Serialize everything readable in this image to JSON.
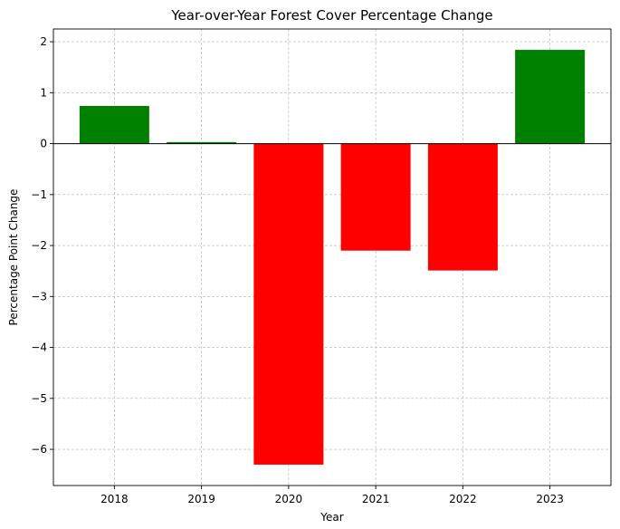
{
  "chart_data": {
    "type": "bar",
    "title": "Year-over-Year Forest Cover Percentage Change",
    "xlabel": "Year",
    "ylabel": "Percentage Point Change",
    "categories": [
      "2018",
      "2019",
      "2020",
      "2021",
      "2022",
      "2023"
    ],
    "values": [
      0.74,
      0.03,
      -6.3,
      -2.1,
      -2.49,
      1.84
    ],
    "colors": {
      "positive": "#008000",
      "negative": "#ff0000"
    },
    "ylim": [
      -6.71,
      2.25
    ],
    "yticks": [
      2,
      1,
      0,
      -1,
      -2,
      -3,
      -4,
      -5,
      -6
    ],
    "ytick_labels": [
      "2",
      "1",
      "0",
      "−1",
      "−2",
      "−3",
      "−4",
      "−5",
      "−6"
    ],
    "grid": true,
    "zero_line": true
  }
}
